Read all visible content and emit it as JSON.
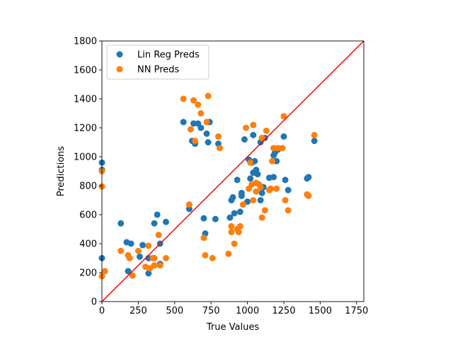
{
  "chart_data": {
    "type": "scatter",
    "title": "",
    "xlabel": "True Values",
    "ylabel": "Predictions",
    "xlim": [
      0,
      1800
    ],
    "ylim": [
      0,
      1800
    ],
    "xticks": [
      0,
      250,
      500,
      750,
      1000,
      1250,
      1500,
      1750
    ],
    "yticks": [
      0,
      200,
      400,
      600,
      800,
      1000,
      1200,
      1400,
      1600,
      1800
    ],
    "grid": false,
    "legend_position": "upper-left",
    "reference_line": {
      "from": [
        0,
        0
      ],
      "to": [
        1800,
        1800
      ],
      "color": "#ff0000"
    },
    "series": [
      {
        "name": "Lin Reg Preds",
        "color": "#1f77b4",
        "points": [
          [
            0,
            960
          ],
          [
            0,
            910
          ],
          [
            0,
            300
          ],
          [
            130,
            540
          ],
          [
            170,
            410
          ],
          [
            200,
            400
          ],
          [
            180,
            210
          ],
          [
            260,
            310
          ],
          [
            280,
            390
          ],
          [
            320,
            300
          ],
          [
            320,
            195
          ],
          [
            360,
            540
          ],
          [
            380,
            600
          ],
          [
            400,
            400
          ],
          [
            440,
            550
          ],
          [
            400,
            260
          ],
          [
            560,
            1240
          ],
          [
            600,
            640
          ],
          [
            620,
            1110
          ],
          [
            630,
            1230
          ],
          [
            640,
            1090
          ],
          [
            660,
            1230
          ],
          [
            680,
            1200
          ],
          [
            700,
            575
          ],
          [
            710,
            470
          ],
          [
            720,
            1160
          ],
          [
            730,
            1100
          ],
          [
            740,
            1240
          ],
          [
            780,
            570
          ],
          [
            800,
            1090
          ],
          [
            880,
            580
          ],
          [
            890,
            700
          ],
          [
            900,
            720
          ],
          [
            910,
            610
          ],
          [
            930,
            840
          ],
          [
            950,
            620
          ],
          [
            960,
            730
          ],
          [
            960,
            750
          ],
          [
            980,
            1120
          ],
          [
            1000,
            690
          ],
          [
            1010,
            980
          ],
          [
            1020,
            850
          ],
          [
            1030,
            960
          ],
          [
            1040,
            1150
          ],
          [
            1040,
            890
          ],
          [
            1050,
            970
          ],
          [
            1060,
            820
          ],
          [
            1060,
            910
          ],
          [
            1070,
            880
          ],
          [
            1090,
            1100
          ],
          [
            1090,
            700
          ],
          [
            1100,
            750
          ],
          [
            1110,
            790
          ],
          [
            1120,
            1130
          ],
          [
            1150,
            855
          ],
          [
            1180,
            1010
          ],
          [
            1180,
            860
          ],
          [
            1190,
            1030
          ],
          [
            1200,
            970
          ],
          [
            1210,
            1050
          ],
          [
            1250,
            1140
          ],
          [
            1260,
            840
          ],
          [
            1280,
            770
          ],
          [
            1410,
            850
          ],
          [
            1420,
            860
          ],
          [
            1460,
            1110
          ]
        ]
      },
      {
        "name": "NN Preds",
        "color": "#ff7f0e",
        "points": [
          [
            0,
            900
          ],
          [
            0,
            795
          ],
          [
            0,
            175
          ],
          [
            20,
            210
          ],
          [
            130,
            350
          ],
          [
            180,
            320
          ],
          [
            190,
            300
          ],
          [
            210,
            180
          ],
          [
            250,
            350
          ],
          [
            300,
            240
          ],
          [
            320,
            385
          ],
          [
            330,
            230
          ],
          [
            350,
            300
          ],
          [
            360,
            250
          ],
          [
            360,
            300
          ],
          [
            390,
            460
          ],
          [
            400,
            250
          ],
          [
            440,
            300
          ],
          [
            560,
            1400
          ],
          [
            600,
            670
          ],
          [
            610,
            1190
          ],
          [
            630,
            1390
          ],
          [
            640,
            1110
          ],
          [
            660,
            1360
          ],
          [
            680,
            1300
          ],
          [
            700,
            440
          ],
          [
            710,
            320
          ],
          [
            720,
            1240
          ],
          [
            730,
            1420
          ],
          [
            760,
            300
          ],
          [
            800,
            1140
          ],
          [
            810,
            1060
          ],
          [
            870,
            330
          ],
          [
            890,
            520
          ],
          [
            890,
            480
          ],
          [
            910,
            400
          ],
          [
            930,
            500
          ],
          [
            940,
            480
          ],
          [
            950,
            520
          ],
          [
            970,
            670
          ],
          [
            990,
            1200
          ],
          [
            1010,
            780
          ],
          [
            1020,
            960
          ],
          [
            1030,
            810
          ],
          [
            1040,
            1220
          ],
          [
            1040,
            700
          ],
          [
            1060,
            820
          ],
          [
            1060,
            760
          ],
          [
            1080,
            810
          ],
          [
            1090,
            790
          ],
          [
            1100,
            580
          ],
          [
            1100,
            1130
          ],
          [
            1120,
            630
          ],
          [
            1130,
            1180
          ],
          [
            1150,
            770
          ],
          [
            1160,
            780
          ],
          [
            1170,
            970
          ],
          [
            1180,
            1060
          ],
          [
            1200,
            780
          ],
          [
            1210,
            1060
          ],
          [
            1240,
            1060
          ],
          [
            1250,
            1280
          ],
          [
            1260,
            700
          ],
          [
            1280,
            630
          ],
          [
            1410,
            740
          ],
          [
            1420,
            730
          ],
          [
            1460,
            1150
          ]
        ]
      }
    ]
  }
}
